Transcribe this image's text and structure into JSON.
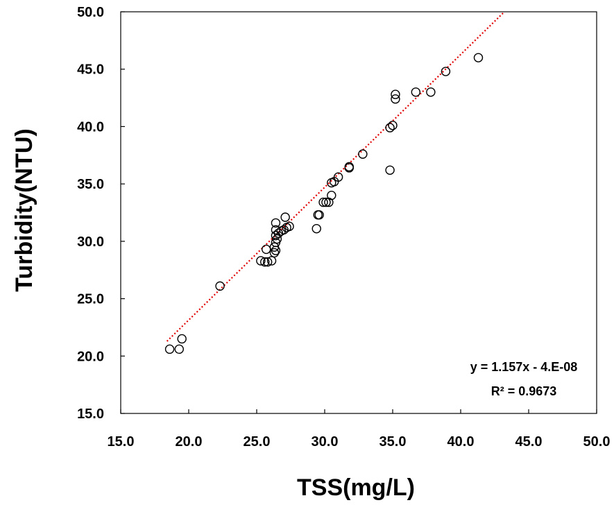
{
  "chart_data": {
    "type": "scatter",
    "title": "",
    "xlabel": "TSS(mg/L)",
    "ylabel": "Turbidity(NTU)",
    "xlim": [
      15.0,
      50.0
    ],
    "ylim": [
      15.0,
      50.0
    ],
    "xticks": [
      "15.0",
      "20.0",
      "25.0",
      "30.0",
      "35.0",
      "40.0",
      "45.0",
      "50.0"
    ],
    "yticks": [
      "15.0",
      "20.0",
      "25.0",
      "30.0",
      "35.0",
      "40.0",
      "45.0",
      "50.0"
    ],
    "grid": false,
    "marker": "open-circle",
    "marker_color": "#000000",
    "points": [
      [
        18.6,
        20.6
      ],
      [
        19.3,
        20.6
      ],
      [
        19.5,
        21.5
      ],
      [
        22.3,
        26.1
      ],
      [
        25.3,
        28.3
      ],
      [
        25.6,
        28.2
      ],
      [
        25.8,
        28.2
      ],
      [
        26.1,
        28.3
      ],
      [
        25.7,
        29.3
      ],
      [
        26.3,
        29.0
      ],
      [
        26.4,
        29.2
      ],
      [
        26.3,
        29.5
      ],
      [
        26.4,
        29.9
      ],
      [
        26.5,
        30.2
      ],
      [
        26.4,
        30.5
      ],
      [
        26.6,
        30.7
      ],
      [
        26.4,
        31.0
      ],
      [
        26.8,
        30.9
      ],
      [
        27.0,
        31.0
      ],
      [
        27.2,
        31.2
      ],
      [
        27.4,
        31.3
      ],
      [
        26.4,
        31.6
      ],
      [
        27.1,
        32.1
      ],
      [
        29.4,
        31.1
      ],
      [
        29.5,
        32.3
      ],
      [
        29.6,
        32.3
      ],
      [
        29.9,
        33.4
      ],
      [
        30.1,
        33.4
      ],
      [
        30.3,
        33.4
      ],
      [
        30.5,
        34.0
      ],
      [
        30.5,
        35.1
      ],
      [
        30.7,
        35.2
      ],
      [
        31.0,
        35.6
      ],
      [
        31.8,
        36.4
      ],
      [
        31.8,
        36.5
      ],
      [
        32.8,
        37.6
      ],
      [
        34.8,
        36.2
      ],
      [
        34.8,
        39.9
      ],
      [
        35.0,
        40.1
      ],
      [
        35.2,
        42.4
      ],
      [
        35.2,
        42.8
      ],
      [
        36.7,
        43.0
      ],
      [
        37.8,
        43.0
      ],
      [
        38.9,
        44.8
      ],
      [
        41.3,
        46.0
      ]
    ],
    "trendline": {
      "style": "dotted",
      "color": "#e00000",
      "slope": 1.157,
      "intercept": 0.0,
      "x_range": [
        18.4,
        43.2
      ]
    },
    "equation_text": "y = 1.157x - 4.E-08",
    "r2_text": "R² = 0.9673",
    "annotation_position": "bottom-right"
  }
}
